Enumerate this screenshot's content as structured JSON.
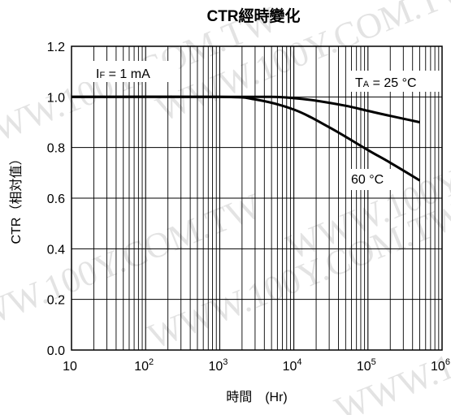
{
  "chart_data": {
    "type": "line",
    "title": "CTR經時變化",
    "xlabel": "時間　(Hr)",
    "ylabel": "CTR（相対值）",
    "x_scale": "log",
    "xlim": [
      10,
      1000000
    ],
    "ylim": [
      0.0,
      1.2
    ],
    "grid": true,
    "x_ticks": [
      {
        "value": 10,
        "base": "10",
        "exp": ""
      },
      {
        "value": 100,
        "base": "10",
        "exp": "2"
      },
      {
        "value": 1000,
        "base": "10",
        "exp": "3"
      },
      {
        "value": 10000,
        "base": "10",
        "exp": "4"
      },
      {
        "value": 100000,
        "base": "10",
        "exp": "5"
      },
      {
        "value": 1000000,
        "base": "10",
        "exp": "6"
      }
    ],
    "y_ticks": [
      {
        "value": 0.0,
        "label": "0.0"
      },
      {
        "value": 0.2,
        "label": "0.2"
      },
      {
        "value": 0.4,
        "label": "0.4"
      },
      {
        "value": 0.6,
        "label": "0.6"
      },
      {
        "value": 0.8,
        "label": "0.8"
      },
      {
        "value": 1.0,
        "label": "1.0"
      },
      {
        "value": 1.2,
        "label": "1.2"
      }
    ],
    "series": [
      {
        "name": "TA = 25 °C",
        "x": [
          10,
          1000,
          5000,
          10000,
          20000,
          50000,
          100000,
          200000,
          500000
        ],
        "y": [
          1.0,
          1.0,
          1.0,
          0.995,
          0.985,
          0.965,
          0.945,
          0.925,
          0.9
        ]
      },
      {
        "name": "60 °C",
        "x": [
          10,
          1000,
          3000,
          10000,
          30000,
          100000,
          200000,
          500000
        ],
        "y": [
          1.0,
          1.0,
          0.99,
          0.95,
          0.88,
          0.79,
          0.74,
          0.67
        ]
      }
    ],
    "annotations": [
      {
        "id": "if",
        "text_main": "I",
        "text_sub": "F",
        "text_rest": " = 1 mA"
      },
      {
        "id": "ta",
        "text_main": "T",
        "text_sub": "A",
        "text_rest": " = 25 °C"
      },
      {
        "id": "t60",
        "text_main": "60 °C"
      }
    ],
    "watermark": "WWW.100Y.COM.TW"
  }
}
